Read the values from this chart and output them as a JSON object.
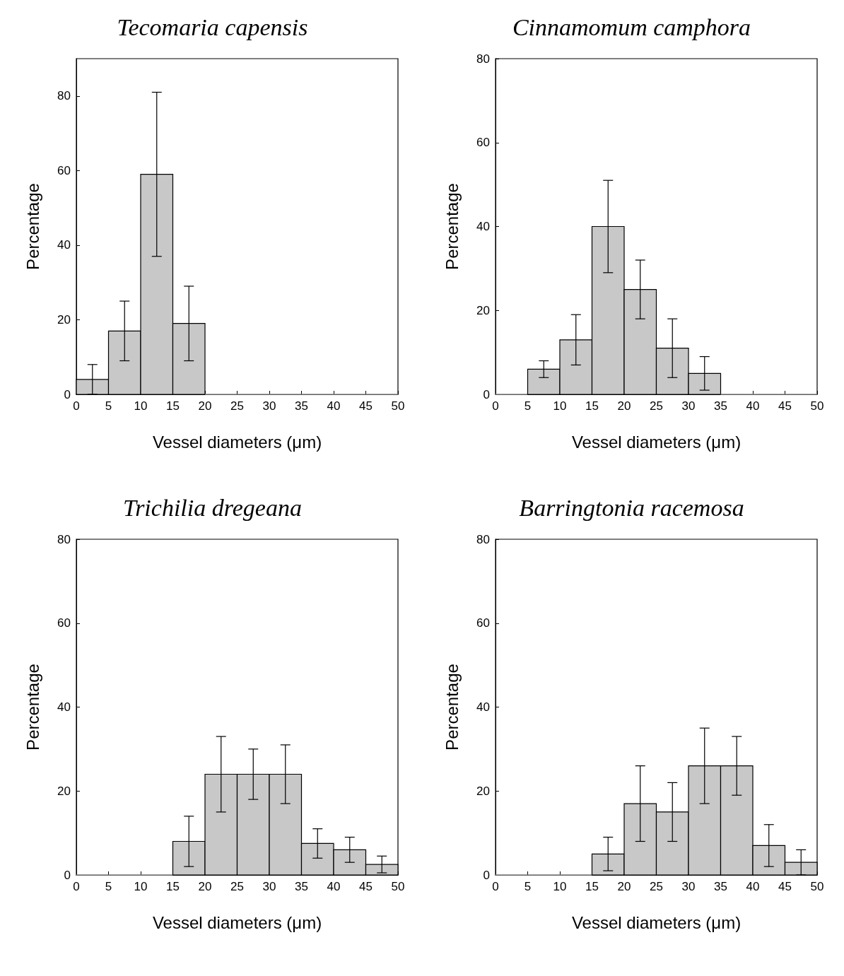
{
  "chart_data": [
    {
      "type": "histogram",
      "title": "Tecomaria capensis",
      "xlabel": "Vessel diameters (μm)",
      "ylabel": "Percentage",
      "bins": [
        0,
        5,
        10,
        15,
        20,
        25,
        30,
        35,
        40,
        45,
        50
      ],
      "values": [
        4,
        17,
        59,
        19,
        0,
        0,
        0,
        0,
        0,
        0
      ],
      "errors": [
        4,
        8,
        22,
        10,
        null,
        null,
        null,
        null,
        null,
        null
      ],
      "color": "#c8c8c8",
      "xlim": [
        0,
        50
      ],
      "xticks": [
        0,
        5,
        10,
        15,
        20,
        25,
        30,
        35,
        40,
        45,
        50
      ],
      "ylim": [
        0,
        90
      ],
      "yticks": [
        0,
        20,
        40,
        60,
        80
      ],
      "grid": false
    },
    {
      "type": "histogram",
      "title": "Cinnamomum camphora",
      "xlabel": "Vessel diameters (μm)",
      "ylabel": "Percentage",
      "bins": [
        0,
        5,
        10,
        15,
        20,
        25,
        30,
        35,
        40,
        45,
        50
      ],
      "values": [
        0,
        6,
        13,
        40,
        25,
        11,
        5,
        0,
        0,
        0
      ],
      "errors": [
        null,
        2,
        6,
        11,
        7,
        7,
        4,
        null,
        null,
        null
      ],
      "color": "#c8c8c8",
      "xlim": [
        0,
        50
      ],
      "xticks": [
        0,
        5,
        10,
        15,
        20,
        25,
        30,
        35,
        40,
        45,
        50
      ],
      "ylim": [
        0,
        80
      ],
      "yticks": [
        0,
        20,
        40,
        60,
        80
      ],
      "grid": false
    },
    {
      "type": "histogram",
      "title": "Trichilia dregeana",
      "xlabel": "Vessel diameters (μm)",
      "ylabel": "Percentage",
      "bins": [
        0,
        5,
        10,
        15,
        20,
        25,
        30,
        35,
        40,
        45,
        50
      ],
      "values": [
        0,
        0,
        0,
        8,
        24,
        24,
        24,
        7.5,
        6,
        2.5
      ],
      "errors": [
        null,
        null,
        null,
        6,
        9,
        6,
        7,
        3.5,
        3,
        2
      ],
      "color": "#c8c8c8",
      "xlim": [
        0,
        50
      ],
      "xticks": [
        0,
        5,
        10,
        15,
        20,
        25,
        30,
        35,
        40,
        45,
        50
      ],
      "ylim": [
        0,
        80
      ],
      "yticks": [
        0,
        20,
        40,
        60,
        80
      ],
      "grid": false
    },
    {
      "type": "histogram",
      "title": "Barringtonia racemosa",
      "xlabel": "Vessel diameters (μm)",
      "ylabel": "Percentage",
      "bins": [
        0,
        5,
        10,
        15,
        20,
        25,
        30,
        35,
        40,
        45,
        50
      ],
      "values": [
        0,
        0,
        0,
        5,
        17,
        15,
        26,
        26,
        7,
        3
      ],
      "errors": [
        null,
        null,
        null,
        4,
        9,
        7,
        9,
        7,
        5,
        3
      ],
      "color": "#c8c8c8",
      "xlim": [
        0,
        50
      ],
      "xticks": [
        0,
        5,
        10,
        15,
        20,
        25,
        30,
        35,
        40,
        45,
        50
      ],
      "ylim": [
        0,
        80
      ],
      "yticks": [
        0,
        20,
        40,
        60,
        80
      ],
      "grid": false
    }
  ]
}
